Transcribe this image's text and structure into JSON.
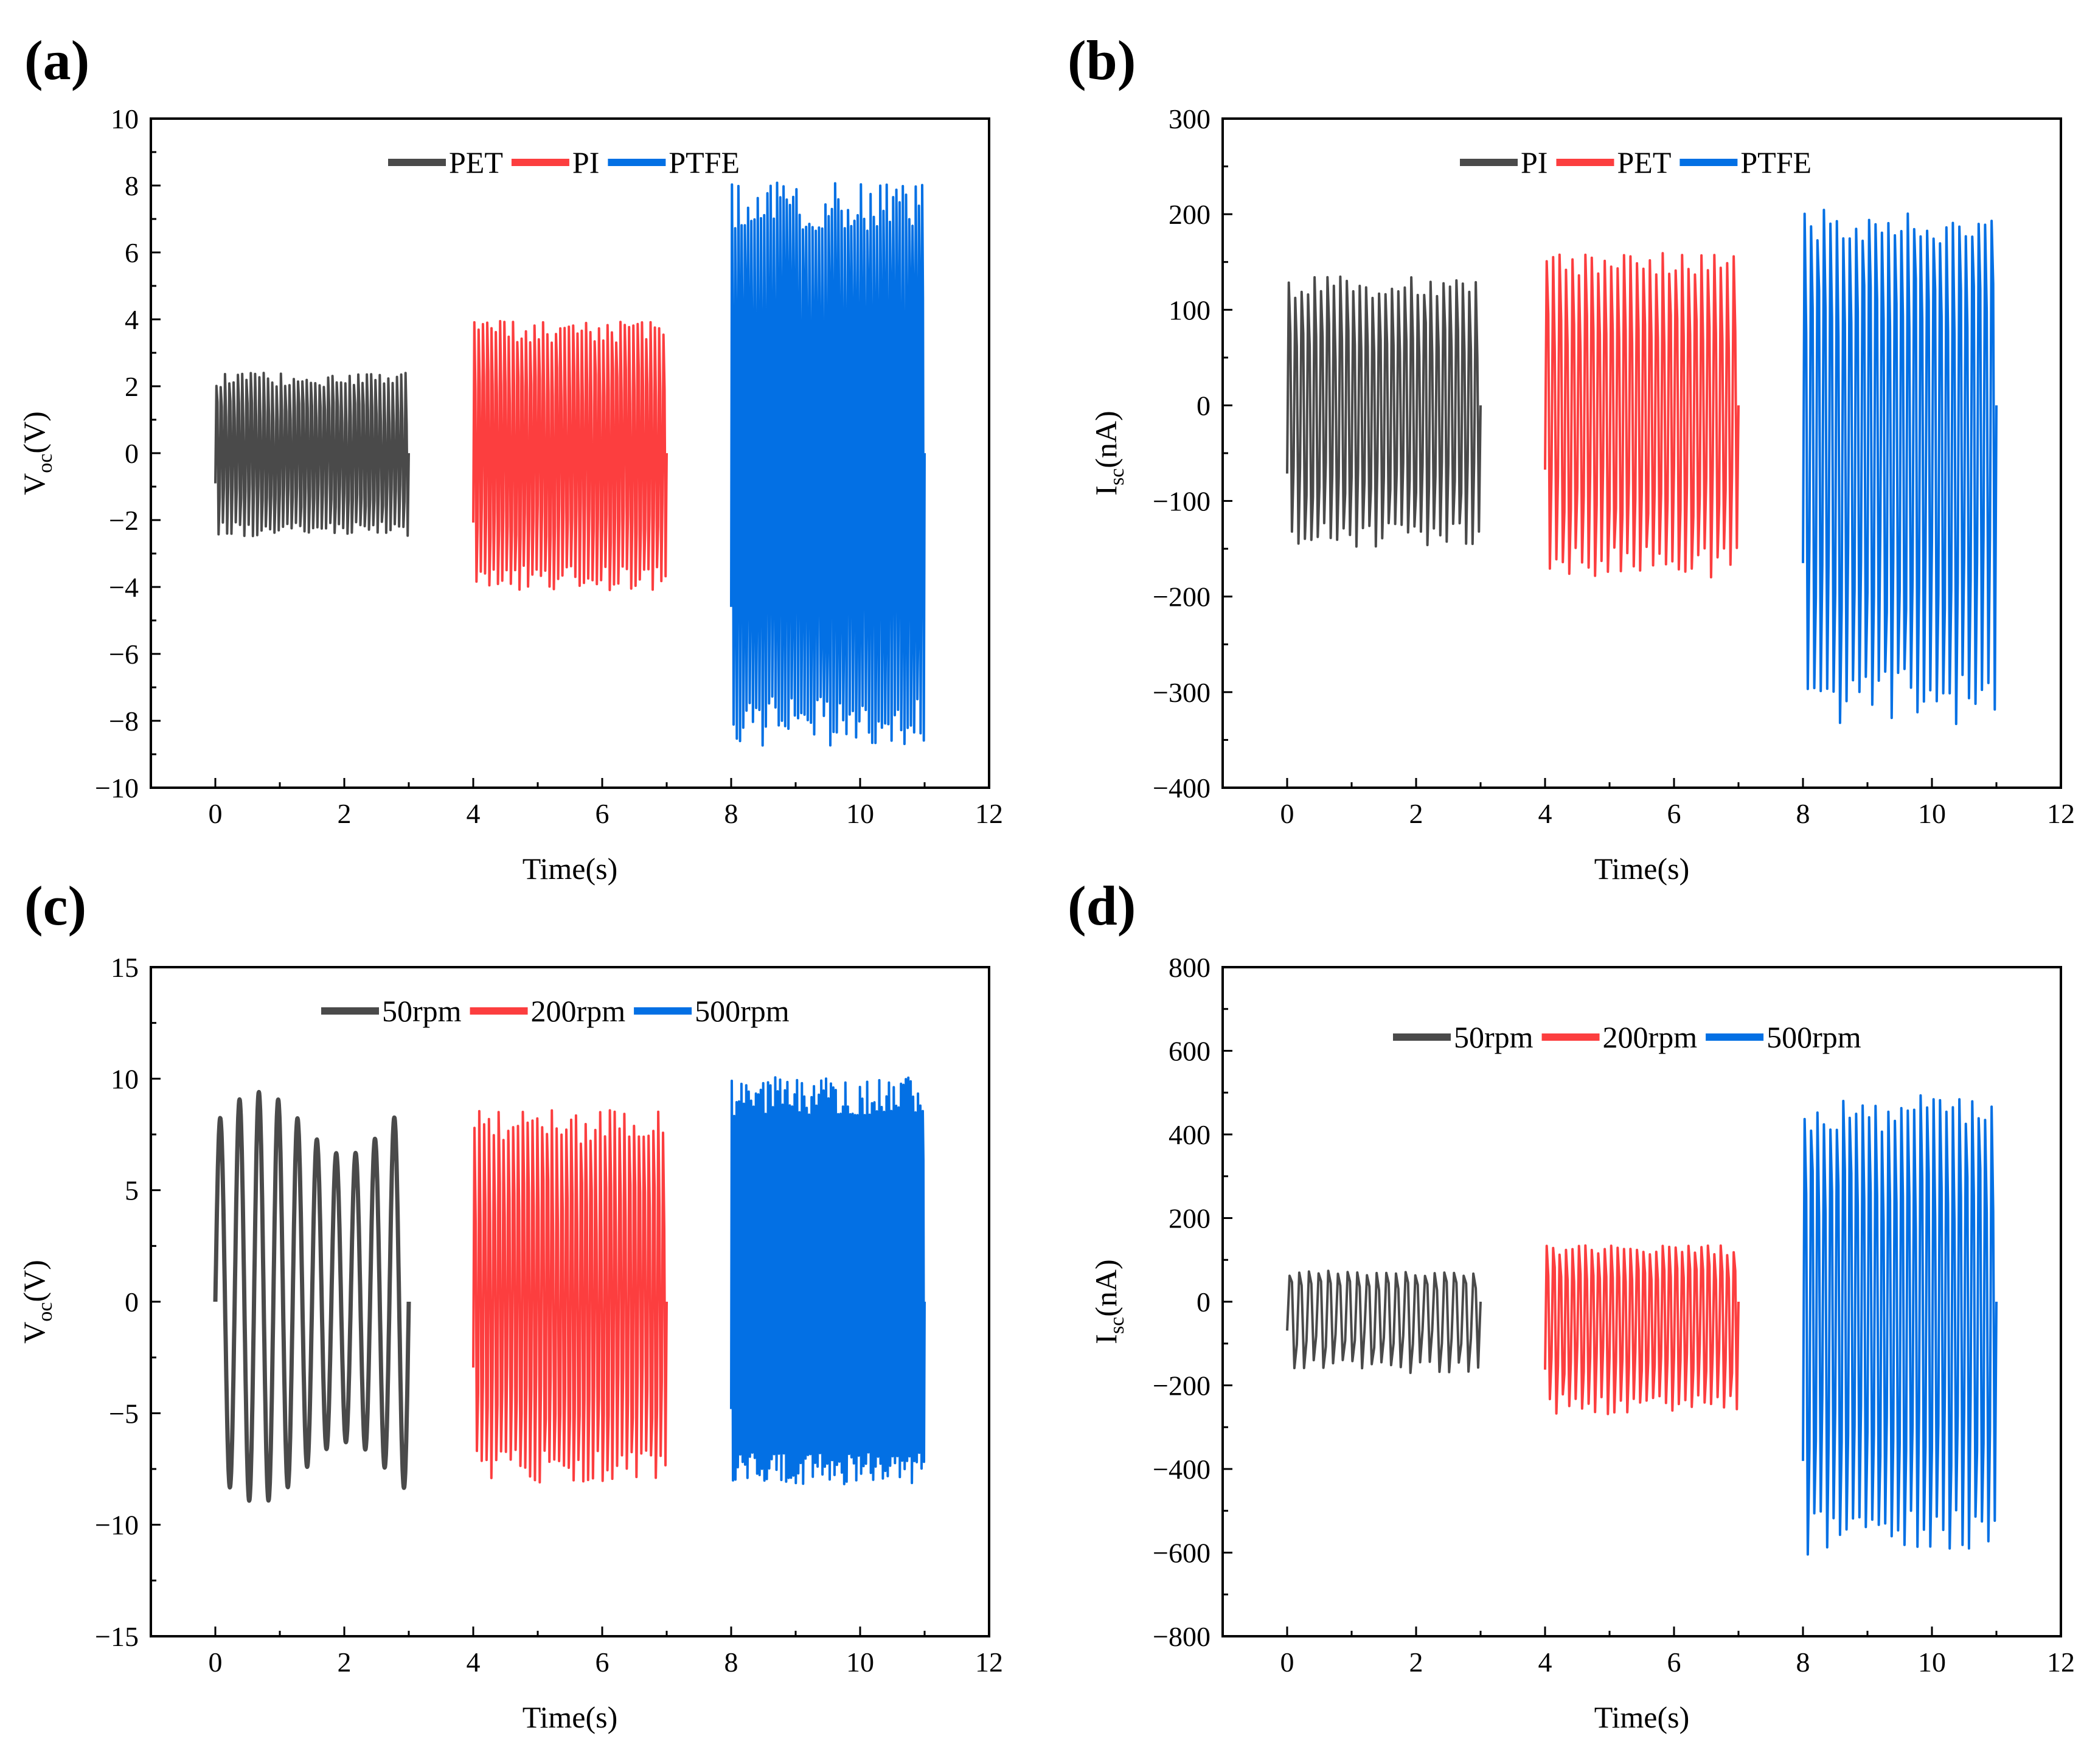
{
  "colors": {
    "series1": "#4a4a4a",
    "series2": "#fc3e3f",
    "series3": "#0370e4"
  },
  "chart_data": [
    {
      "panel": "(a)",
      "type": "line",
      "xlabel": "Time(s)",
      "ylabel_main": "V",
      "ylabel_sub": "oc",
      "ylabel_unit": "(V)",
      "xlim": [
        -1,
        12
      ],
      "ylim": [
        -10,
        10
      ],
      "xticks": [
        0,
        2,
        4,
        6,
        8,
        10,
        12
      ],
      "xtick_labels": [
        "0",
        "2",
        "4",
        "6",
        "8",
        "10",
        "12"
      ],
      "yticks": [
        -10,
        -8,
        -6,
        -4,
        -2,
        0,
        2,
        4,
        6,
        8,
        10
      ],
      "ytick_labels": [
        "−10",
        "−8",
        "−6",
        "−4",
        "−2",
        "0",
        "2",
        "4",
        "6",
        "8",
        "10"
      ],
      "grid": false,
      "legend_placement": "top-center",
      "series": [
        {
          "name": "PET",
          "color": "#4a4a4a",
          "x_start": 0,
          "x_end": 3,
          "max": 2.4,
          "min": -2.5,
          "cycles": 45
        },
        {
          "name": "PI",
          "color": "#fc3e3f",
          "x_start": 4,
          "x_end": 7,
          "max": 4.0,
          "min": -4.1,
          "cycles": 45
        },
        {
          "name": "PTFE",
          "color": "#0370e4",
          "x_start": 8,
          "x_end": 11,
          "max": 8.1,
          "min": -8.8,
          "cycles": 60
        }
      ]
    },
    {
      "panel": "(b)",
      "type": "line",
      "xlabel": "Time(s)",
      "ylabel_main": "I",
      "ylabel_sub": "sc",
      "ylabel_unit": "(nA)",
      "xlim": [
        -1,
        12
      ],
      "ylim": [
        -400,
        300
      ],
      "xticks": [
        0,
        2,
        4,
        6,
        8,
        10,
        12
      ],
      "xtick_labels": [
        "0",
        "2",
        "4",
        "6",
        "8",
        "10",
        "12"
      ],
      "yticks": [
        -400,
        -300,
        -200,
        -100,
        0,
        100,
        200,
        300
      ],
      "ytick_labels": [
        "−400",
        "−300",
        "−200",
        "−100",
        "0",
        "100",
        "200",
        "300"
      ],
      "grid": false,
      "legend_placement": "top-center",
      "series": [
        {
          "name": "PI",
          "color": "#4a4a4a",
          "x_start": 0,
          "x_end": 3,
          "max": 135,
          "min": -150,
          "cycles": 30
        },
        {
          "name": "PET",
          "color": "#fc3e3f",
          "x_start": 4,
          "x_end": 7,
          "max": 160,
          "min": -180,
          "cycles": 30
        },
        {
          "name": "PTFE",
          "color": "#0370e4",
          "x_start": 8,
          "x_end": 11,
          "max": 205,
          "min": -335,
          "cycles": 30
        }
      ]
    },
    {
      "panel": "(c)",
      "type": "line",
      "xlabel": "Time(s)",
      "ylabel_main": "V",
      "ylabel_sub": "oc",
      "ylabel_unit": "(V)",
      "xlim": [
        -1,
        12
      ],
      "ylim": [
        -15,
        15
      ],
      "xticks": [
        0,
        2,
        4,
        6,
        8,
        10,
        12
      ],
      "xtick_labels": [
        "0",
        "2",
        "4",
        "6",
        "8",
        "10",
        "12"
      ],
      "yticks": [
        -15,
        -10,
        -5,
        0,
        5,
        10,
        15
      ],
      "ytick_labels": [
        "−15",
        "−10",
        "−5",
        "0",
        "5",
        "10",
        "15"
      ],
      "grid": false,
      "legend_placement": "top-center",
      "series": [
        {
          "name": "50rpm",
          "color": "#4a4a4a",
          "x_start": 0,
          "x_end": 3,
          "max": 9.4,
          "min": -9.0,
          "cycles": 10
        },
        {
          "name": "200rpm",
          "color": "#fc3e3f",
          "x_start": 4,
          "x_end": 7,
          "max": 8.6,
          "min": -8.1,
          "cycles": 40
        },
        {
          "name": "500rpm",
          "color": "#0370e4",
          "x_start": 8,
          "x_end": 11,
          "max": 10.1,
          "min": -8.2,
          "cycles": 80
        }
      ]
    },
    {
      "panel": "(d)",
      "type": "line",
      "xlabel": "Time(s)",
      "ylabel_main": "I",
      "ylabel_sub": "sc",
      "ylabel_unit": "(nA)",
      "xlim": [
        -1,
        12
      ],
      "ylim": [
        -800,
        800
      ],
      "xticks": [
        0,
        2,
        4,
        6,
        8,
        10,
        12
      ],
      "xtick_labels": [
        "0",
        "2",
        "4",
        "6",
        "8",
        "10",
        "12"
      ],
      "yticks": [
        -800,
        -600,
        -400,
        -200,
        0,
        200,
        400,
        600,
        800
      ],
      "ytick_labels": [
        "−800",
        "−600",
        "−400",
        "−200",
        "0",
        "200",
        "400",
        "600",
        "800"
      ],
      "grid": false,
      "legend_placement": "top-center",
      "series": [
        {
          "name": "50rpm",
          "color": "#4a4a4a",
          "x_start": 0,
          "x_end": 3,
          "max": 75,
          "min": -170,
          "cycles": 20
        },
        {
          "name": "200rpm",
          "color": "#fc3e3f",
          "x_start": 4,
          "x_end": 7,
          "max": 135,
          "min": -270,
          "cycles": 30
        },
        {
          "name": "500rpm",
          "color": "#0370e4",
          "x_start": 8,
          "x_end": 11,
          "max": 495,
          "min": -605,
          "cycles": 30
        }
      ]
    }
  ]
}
